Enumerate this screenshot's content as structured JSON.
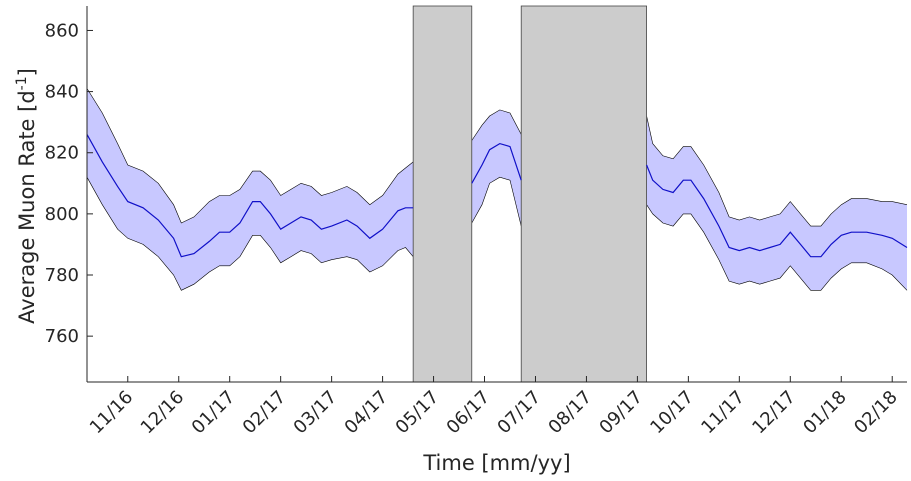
{
  "chart_data": {
    "type": "area",
    "xlabel": "Time [mm/yy]",
    "ylabel_main": "Average Muon Rate [d",
    "ylabel_sup": "-1",
    "ylabel_tail": "]",
    "ylim": [
      745,
      868
    ],
    "yticks": [
      760,
      780,
      800,
      820,
      840,
      860
    ],
    "ytick_labels": [
      "760",
      "780",
      "800",
      "820",
      "840",
      "860"
    ],
    "x_unit": "months since 2016-10-01",
    "xlim": [
      0.2,
      16.29
    ],
    "xticks": [
      1,
      2,
      3,
      4,
      5,
      6,
      7,
      8,
      9,
      10,
      11,
      12,
      13,
      14,
      15,
      16
    ],
    "xtick_labels": [
      "11/16",
      "12/16",
      "01/17",
      "02/17",
      "03/17",
      "04/17",
      "05/17",
      "06/17",
      "07/17",
      "08/17",
      "09/17",
      "10/17",
      "11/17",
      "12/17",
      "01/18",
      "02/18"
    ],
    "grid": false,
    "colors": {
      "line": "#1010c8",
      "band": "#c8c8ff",
      "gap": "#cccccc",
      "axis": "#262626"
    },
    "gaps": [
      [
        6.6,
        7.75
      ],
      [
        8.72,
        11.18
      ]
    ],
    "series": [
      {
        "segments": [
          [
            [
              0.2,
              826
            ],
            [
              0.5,
              817
            ],
            [
              0.8,
              809
            ],
            [
              1.0,
              804
            ],
            [
              1.3,
              802
            ],
            [
              1.6,
              798
            ],
            [
              1.9,
              792
            ],
            [
              2.05,
              786
            ],
            [
              2.3,
              787
            ],
            [
              2.6,
              791
            ],
            [
              2.8,
              794
            ],
            [
              3.0,
              794
            ],
            [
              3.2,
              797
            ],
            [
              3.45,
              804
            ],
            [
              3.6,
              804
            ],
            [
              3.8,
              800
            ],
            [
              4.0,
              795
            ],
            [
              4.2,
              797
            ],
            [
              4.4,
              799
            ],
            [
              4.6,
              798
            ],
            [
              4.8,
              795
            ],
            [
              5.0,
              796
            ],
            [
              5.3,
              798
            ],
            [
              5.5,
              796
            ],
            [
              5.75,
              792
            ],
            [
              6.0,
              795
            ],
            [
              6.3,
              801
            ],
            [
              6.45,
              802
            ],
            [
              6.6,
              802
            ]
          ],
          [
            [
              7.75,
              810
            ],
            [
              7.95,
              816
            ],
            [
              8.1,
              821
            ],
            [
              8.3,
              823
            ],
            [
              8.5,
              822
            ],
            [
              8.72,
              811
            ]
          ],
          [
            [
              11.18,
              816
            ],
            [
              11.3,
              811
            ],
            [
              11.5,
              808
            ],
            [
              11.7,
              807
            ],
            [
              11.9,
              811
            ],
            [
              12.05,
              811
            ],
            [
              12.3,
              805
            ],
            [
              12.6,
              796
            ],
            [
              12.8,
              789
            ],
            [
              13.0,
              788
            ],
            [
              13.2,
              789
            ],
            [
              13.4,
              788
            ],
            [
              13.6,
              789
            ],
            [
              13.8,
              790
            ],
            [
              14.0,
              794
            ],
            [
              14.2,
              790
            ],
            [
              14.4,
              786
            ],
            [
              14.6,
              786
            ],
            [
              14.8,
              790
            ],
            [
              15.0,
              793
            ],
            [
              15.2,
              794
            ],
            [
              15.5,
              794
            ],
            [
              15.8,
              793
            ],
            [
              16.0,
              792
            ],
            [
              16.29,
              789
            ]
          ]
        ],
        "band_upper": [
          [
            [
              0.2,
              841
            ],
            [
              0.5,
              833
            ],
            [
              0.8,
              823
            ],
            [
              1.0,
              816
            ],
            [
              1.3,
              814
            ],
            [
              1.6,
              810
            ],
            [
              1.9,
              803
            ],
            [
              2.05,
              797
            ],
            [
              2.3,
              799
            ],
            [
              2.6,
              804
            ],
            [
              2.8,
              806
            ],
            [
              3.0,
              806
            ],
            [
              3.2,
              808
            ],
            [
              3.45,
              814
            ],
            [
              3.6,
              814
            ],
            [
              3.8,
              811
            ],
            [
              4.0,
              806
            ],
            [
              4.2,
              808
            ],
            [
              4.4,
              810
            ],
            [
              4.6,
              809
            ],
            [
              4.8,
              806
            ],
            [
              5.0,
              807
            ],
            [
              5.3,
              809
            ],
            [
              5.5,
              807
            ],
            [
              5.75,
              803
            ],
            [
              6.0,
              806
            ],
            [
              6.3,
              813
            ],
            [
              6.45,
              815
            ],
            [
              6.6,
              817
            ]
          ],
          [
            [
              7.75,
              824
            ],
            [
              7.95,
              829
            ],
            [
              8.1,
              832
            ],
            [
              8.3,
              834
            ],
            [
              8.5,
              833
            ],
            [
              8.72,
              826
            ]
          ],
          [
            [
              11.18,
              832
            ],
            [
              11.3,
              823
            ],
            [
              11.5,
              819
            ],
            [
              11.7,
              818
            ],
            [
              11.9,
              822
            ],
            [
              12.05,
              822
            ],
            [
              12.3,
              816
            ],
            [
              12.6,
              807
            ],
            [
              12.8,
              799
            ],
            [
              13.0,
              798
            ],
            [
              13.2,
              799
            ],
            [
              13.4,
              798
            ],
            [
              13.6,
              799
            ],
            [
              13.8,
              800
            ],
            [
              14.0,
              804
            ],
            [
              14.2,
              800
            ],
            [
              14.4,
              796
            ],
            [
              14.6,
              796
            ],
            [
              14.8,
              800
            ],
            [
              15.0,
              803
            ],
            [
              15.2,
              805
            ],
            [
              15.5,
              805
            ],
            [
              15.8,
              804
            ],
            [
              16.0,
              804
            ],
            [
              16.29,
              803
            ]
          ]
        ],
        "band_lower": [
          [
            [
              0.2,
              812
            ],
            [
              0.5,
              803
            ],
            [
              0.8,
              795
            ],
            [
              1.0,
              792
            ],
            [
              1.3,
              790
            ],
            [
              1.6,
              786
            ],
            [
              1.9,
              780
            ],
            [
              2.05,
              775
            ],
            [
              2.3,
              777
            ],
            [
              2.6,
              781
            ],
            [
              2.8,
              783
            ],
            [
              3.0,
              783
            ],
            [
              3.2,
              786
            ],
            [
              3.45,
              793
            ],
            [
              3.6,
              793
            ],
            [
              3.8,
              789
            ],
            [
              4.0,
              784
            ],
            [
              4.2,
              786
            ],
            [
              4.4,
              788
            ],
            [
              4.6,
              787
            ],
            [
              4.8,
              784
            ],
            [
              5.0,
              785
            ],
            [
              5.3,
              786
            ],
            [
              5.5,
              785
            ],
            [
              5.75,
              781
            ],
            [
              6.0,
              783
            ],
            [
              6.3,
              788
            ],
            [
              6.45,
              789
            ],
            [
              6.6,
              786
            ]
          ],
          [
            [
              7.75,
              797
            ],
            [
              7.95,
              803
            ],
            [
              8.1,
              810
            ],
            [
              8.3,
              812
            ],
            [
              8.5,
              811
            ],
            [
              8.72,
              796
            ]
          ],
          [
            [
              11.18,
              803
            ],
            [
              11.3,
              800
            ],
            [
              11.5,
              797
            ],
            [
              11.7,
              796
            ],
            [
              11.9,
              800
            ],
            [
              12.05,
              800
            ],
            [
              12.3,
              794
            ],
            [
              12.6,
              785
            ],
            [
              12.8,
              778
            ],
            [
              13.0,
              777
            ],
            [
              13.2,
              778
            ],
            [
              13.4,
              777
            ],
            [
              13.6,
              778
            ],
            [
              13.8,
              779
            ],
            [
              14.0,
              783
            ],
            [
              14.2,
              779
            ],
            [
              14.4,
              775
            ],
            [
              14.6,
              775
            ],
            [
              14.8,
              779
            ],
            [
              15.0,
              782
            ],
            [
              15.2,
              784
            ],
            [
              15.5,
              784
            ],
            [
              15.8,
              782
            ],
            [
              16.0,
              780
            ],
            [
              16.29,
              775
            ]
          ]
        ]
      }
    ]
  }
}
